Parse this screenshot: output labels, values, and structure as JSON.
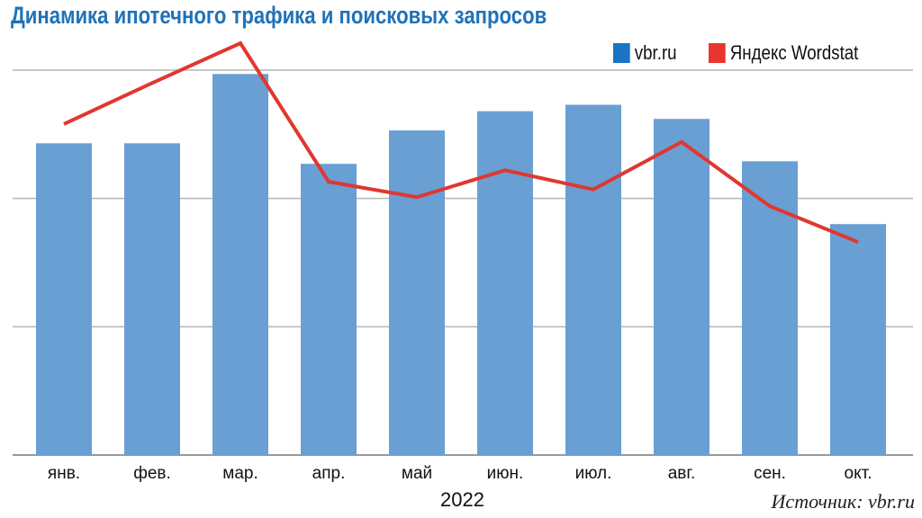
{
  "chart_data": {
    "type": "bar",
    "title": "Динамика ипотечного трафика и поисковых запросов",
    "categories": [
      "янв.",
      "фев.",
      "мар.",
      "апр.",
      "май",
      "июн.",
      "июл.",
      "авг.",
      "сен.",
      "окт."
    ],
    "xlabel": "2022",
    "ylabel": "",
    "ylim": [
      0,
      3
    ],
    "grid": true,
    "legend_position": "top-right",
    "series": [
      {
        "name": "vbr.ru",
        "type": "bar",
        "color": "#6a9fd4",
        "legend_color": "#1a73c4",
        "values": [
          2.43,
          2.43,
          2.97,
          2.27,
          2.53,
          2.68,
          2.73,
          2.62,
          2.29,
          1.8
        ]
      },
      {
        "name": "Яндекс Wordstat",
        "type": "line",
        "color": "#e0372f",
        "legend_color": "#e8352d",
        "values": [
          2.58,
          2.9,
          3.21,
          2.13,
          2.01,
          2.22,
          2.07,
          2.44,
          1.94,
          1.66
        ]
      }
    ],
    "source": "Источник: vbr.ru"
  }
}
